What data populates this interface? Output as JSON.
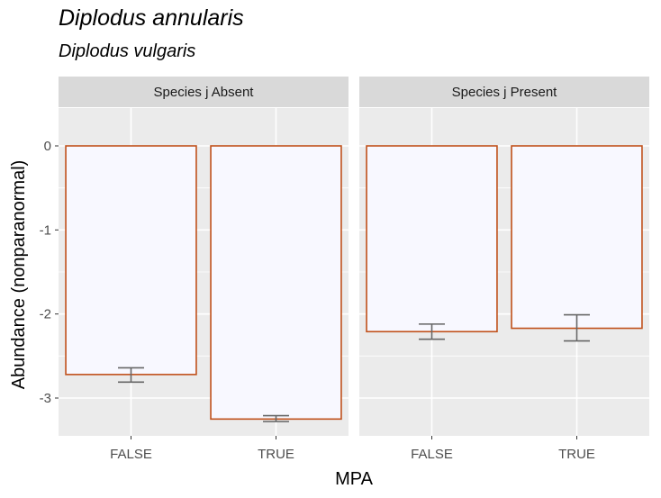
{
  "title": "Diplodus annularis",
  "subtitle": "Diplodus vulgaris",
  "chart_data": {
    "type": "bar",
    "xlabel": "MPA",
    "ylabel": "Abundance (nonparanormal)",
    "ylim": [
      -3.45,
      0.45
    ],
    "yticks": [
      0,
      -1,
      -2,
      -3
    ],
    "ytick_labels": [
      "0",
      "-1",
      "-2",
      "-3"
    ],
    "categories": [
      "FALSE",
      "TRUE"
    ],
    "grid": true,
    "colors": {
      "bar_fill": "#f8f8ff",
      "bar_stroke": "#c0501a",
      "panel_bg": "#ebebeb",
      "strip_bg": "#d9d9d9",
      "grid": "#ffffff",
      "errorbar": "#666666"
    },
    "panels": [
      {
        "label": "Species j Absent",
        "values": [
          -2.72,
          -3.25
        ],
        "error_low": [
          -2.81,
          -3.28
        ],
        "error_high": [
          -2.64,
          -3.21
        ]
      },
      {
        "label": "Species j Present",
        "values": [
          -2.21,
          -2.17
        ],
        "error_low": [
          -2.3,
          -2.32
        ],
        "error_high": [
          -2.12,
          -2.01
        ]
      }
    ]
  }
}
